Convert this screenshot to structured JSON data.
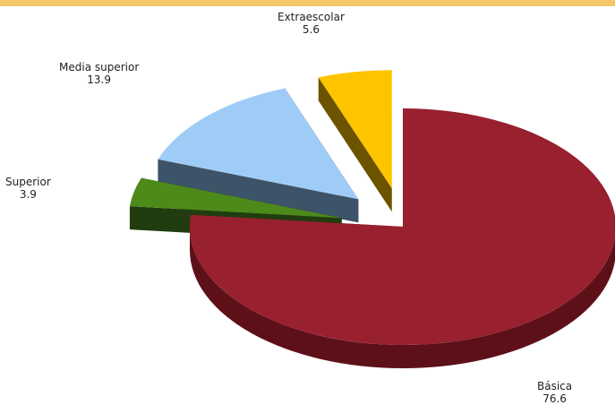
{
  "colors": {
    "top_bar": "#f6c76a"
  },
  "chart_data": {
    "type": "pie",
    "slices": [
      {
        "label": "Básica",
        "value": 76.6,
        "color": "#98202f",
        "side": "#5e1019",
        "exploded": false
      },
      {
        "label": "Superior",
        "value": 3.9,
        "color": "#4c8a1a",
        "side": "#213d10",
        "exploded": true
      },
      {
        "label": "Media superior",
        "value": 13.9,
        "color": "#9fccf7",
        "side": "#3d5368",
        "exploded": true
      },
      {
        "label": "Extraescolar",
        "value": 5.6,
        "color": "#fec400",
        "side": "#6c5300",
        "exploded": true
      }
    ]
  }
}
